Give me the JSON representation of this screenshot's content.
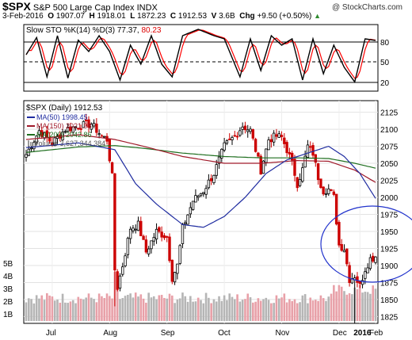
{
  "header": {
    "symbol": "$SPX",
    "name": "S&P 500 Large Cap Index",
    "exchange": "INDX",
    "copyright": "@ StockCharts.com",
    "date": "3-Feb-2016",
    "open_label": "O",
    "open": "1907.07",
    "high_label": "H",
    "high": "1918.01",
    "low_label": "L",
    "low": "1872.23",
    "close_label": "C",
    "close": "1912.53",
    "volume_label": "V",
    "volume": "3.6B",
    "chg_label": "Chg",
    "chg": "+9.50 (+0.50%)",
    "trend_icon": "up-triangle-icon",
    "trend_color": "#2e8b2e"
  },
  "sto": {
    "label": "Slow STO %K(14) %D(3)",
    "k_value": "77.37",
    "d_value": "80.23",
    "k_color": "#000000",
    "d_color": "#ff0000",
    "levels": [
      "80",
      "50",
      "20"
    ]
  },
  "legend": {
    "title_label": "$SPX (Daily)",
    "title_value": "1912.53",
    "ma50_label": "MA(50)",
    "ma50_value": "1998.45",
    "ma50_color": "#1f2ca0",
    "ma150_label": "MA(150)",
    "ma150_value": "2021.98",
    "ma150_color": "#a01a2a",
    "ma200_label": "MA(200)",
    "ma200_value": "2042.86",
    "ma200_color": "#1e6e1e",
    "vol_label": "Volume",
    "vol_value": "3,627,344,384"
  },
  "colors": {
    "up": "#000000",
    "down": "#cc0000",
    "vol_up": "#b5b5b5",
    "vol_down": "#e8a0a8",
    "ellipse": "#2233cc"
  },
  "chart_data": {
    "type": "candlestick",
    "price_axis": [
      "2125",
      "2100",
      "2075",
      "2050",
      "2025",
      "2000",
      "1975",
      "1950",
      "1925",
      "1900",
      "1875",
      "1850",
      "1825"
    ],
    "volume_axis": [
      "5B",
      "4B",
      "3B",
      "2B",
      "1B"
    ],
    "months": [
      "Jul",
      "Aug",
      "Sep",
      "Oct",
      "Nov",
      "Dec",
      "2016",
      "Feb"
    ],
    "ylim": [
      1810,
      2140
    ],
    "close_anchors": [
      [
        0,
        2063
      ],
      [
        5,
        2098
      ],
      [
        10,
        2080
      ],
      [
        15,
        2100
      ],
      [
        20,
        2105
      ],
      [
        25,
        2108
      ],
      [
        29,
        2090
      ],
      [
        31,
        2085
      ],
      [
        33,
        2030
      ],
      [
        34,
        1894
      ],
      [
        35,
        1868
      ],
      [
        37,
        1900
      ],
      [
        40,
        1955
      ],
      [
        43,
        1960
      ],
      [
        46,
        1920
      ],
      [
        50,
        1950
      ],
      [
        54,
        1942
      ],
      [
        56,
        1882
      ],
      [
        58,
        1900
      ],
      [
        60,
        1955
      ],
      [
        64,
        1995
      ],
      [
        68,
        2010
      ],
      [
        72,
        2035
      ],
      [
        76,
        2075
      ],
      [
        80,
        2090
      ],
      [
        83,
        2105
      ],
      [
        86,
        2098
      ],
      [
        88,
        2070
      ],
      [
        90,
        2040
      ],
      [
        93,
        2085
      ],
      [
        96,
        2090
      ],
      [
        98,
        2088
      ],
      [
        100,
        2070
      ],
      [
        102,
        2050
      ],
      [
        104,
        2020
      ],
      [
        106,
        2041
      ],
      [
        108,
        2075
      ],
      [
        110,
        2065
      ],
      [
        112,
        2030
      ],
      [
        114,
        2010
      ],
      [
        116,
        2012
      ],
      [
        118,
        2000
      ],
      [
        120,
        1930
      ],
      [
        122,
        1925
      ],
      [
        124,
        1880
      ],
      [
        126,
        1885
      ],
      [
        128,
        1870
      ],
      [
        130,
        1895
      ],
      [
        132,
        1910
      ],
      [
        134,
        1912.53
      ]
    ],
    "ma50_anchors": [
      [
        0,
        2073
      ],
      [
        20,
        2080
      ],
      [
        34,
        2070
      ],
      [
        42,
        2020
      ],
      [
        50,
        1990
      ],
      [
        60,
        1960
      ],
      [
        68,
        1956
      ],
      [
        76,
        1972
      ],
      [
        84,
        2000
      ],
      [
        92,
        2035
      ],
      [
        100,
        2055
      ],
      [
        108,
        2065
      ],
      [
        116,
        2075
      ],
      [
        122,
        2060
      ],
      [
        128,
        2035
      ],
      [
        134,
        1998.45
      ]
    ],
    "ma150_anchors": [
      [
        0,
        2085
      ],
      [
        20,
        2092
      ],
      [
        34,
        2085
      ],
      [
        45,
        2075
      ],
      [
        60,
        2060
      ],
      [
        76,
        2050
      ],
      [
        90,
        2050
      ],
      [
        104,
        2054
      ],
      [
        116,
        2053
      ],
      [
        126,
        2040
      ],
      [
        134,
        2021.98
      ]
    ],
    "ma200_anchors": [
      [
        0,
        2066
      ],
      [
        20,
        2074
      ],
      [
        34,
        2076
      ],
      [
        45,
        2072
      ],
      [
        60,
        2065
      ],
      [
        76,
        2060
      ],
      [
        90,
        2058
      ],
      [
        104,
        2058
      ],
      [
        116,
        2057
      ],
      [
        126,
        2050
      ],
      [
        134,
        2042.86
      ]
    ],
    "sto_anchors": [
      [
        0,
        55
      ],
      [
        4,
        82
      ],
      [
        8,
        20
      ],
      [
        12,
        85
      ],
      [
        16,
        18
      ],
      [
        20,
        78
      ],
      [
        24,
        60
      ],
      [
        28,
        85
      ],
      [
        32,
        60
      ],
      [
        36,
        15
      ],
      [
        40,
        70
      ],
      [
        44,
        40
      ],
      [
        48,
        85
      ],
      [
        52,
        40
      ],
      [
        56,
        20
      ],
      [
        60,
        85
      ],
      [
        66,
        95
      ],
      [
        72,
        85
      ],
      [
        76,
        80
      ],
      [
        82,
        20
      ],
      [
        86,
        80
      ],
      [
        90,
        30
      ],
      [
        94,
        85
      ],
      [
        98,
        70
      ],
      [
        102,
        80
      ],
      [
        106,
        15
      ],
      [
        110,
        80
      ],
      [
        114,
        25
      ],
      [
        118,
        70
      ],
      [
        122,
        35
      ],
      [
        126,
        12
      ],
      [
        130,
        80
      ],
      [
        134,
        77.37
      ]
    ]
  }
}
